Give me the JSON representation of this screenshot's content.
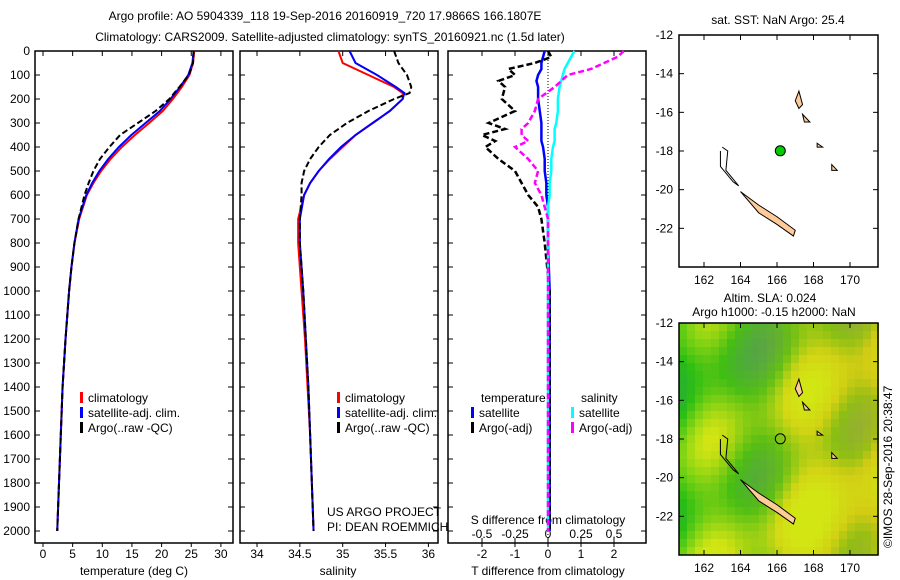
{
  "title_line1": "Argo profile: AO 5904339_118 19-Sep-2016 20160919_720 17.9866S 166.1807E",
  "title_line2": "Climatology: CARS2009. Satellite-adjusted climatology: synTS_20160921.nc (1.5d later)",
  "credit": "©IMOS 28-Sep-2016 20:38:47",
  "colors": {
    "climatology": "#ff0000",
    "satellite": "#0000ff",
    "argo": "#000000",
    "sal_satellite": "#00ffff",
    "sal_argo": "#ff00ff",
    "island": "#ffcc99",
    "argo_point": "#00cc00"
  },
  "chart_data": [
    {
      "type": "line",
      "title": "",
      "xlabel": "temperature (deg C)",
      "ylabel": "",
      "xlim": [
        -1.3,
        32
      ],
      "ylim": [
        2050,
        0
      ],
      "xticks": [
        "0",
        "5",
        "10",
        "15",
        "20",
        "25",
        "30"
      ],
      "yticks": [
        "0",
        "100",
        "200",
        "300",
        "400",
        "500",
        "600",
        "700",
        "800",
        "900",
        "1000",
        "1100",
        "1200",
        "1300",
        "1400",
        "1500",
        "1600",
        "1700",
        "1800",
        "1900",
        "2000"
      ],
      "legend": [
        "climatology",
        "satellite-adj. clim.",
        "Argo(..raw -QC)"
      ],
      "depth": [
        0,
        50,
        100,
        150,
        200,
        250,
        300,
        350,
        400,
        450,
        500,
        550,
        600,
        700,
        800,
        900,
        1000,
        1200,
        1400,
        1600,
        1800,
        2000
      ],
      "series": [
        {
          "name": "climatology",
          "values": [
            25.5,
            25.3,
            24.7,
            23.4,
            21.9,
            20.2,
            17.9,
            15.5,
            13.3,
            11.4,
            9.8,
            8.5,
            7.4,
            6.1,
            5.3,
            4.8,
            4.4,
            3.8,
            3.3,
            3.0,
            2.7,
            2.4
          ]
        },
        {
          "name": "satellite-adj. clim.",
          "values": [
            25.4,
            25.2,
            24.5,
            23.1,
            21.5,
            19.7,
            17.3,
            14.9,
            12.8,
            11.0,
            9.5,
            8.3,
            7.3,
            6.0,
            5.3,
            4.8,
            4.4,
            3.8,
            3.3,
            3.0,
            2.7,
            2.4
          ]
        },
        {
          "name": "Argo(..raw -QC)",
          "values": [
            25.4,
            25.3,
            24.6,
            23.0,
            21.3,
            19.0,
            16.0,
            13.0,
            11.2,
            9.6,
            8.5,
            7.7,
            7.0,
            6.0,
            5.3,
            4.8,
            4.4,
            3.8,
            3.3,
            3.0,
            2.7,
            2.4
          ]
        }
      ]
    },
    {
      "type": "line",
      "xlabel": "salinity",
      "xlim": [
        33.8,
        36.3
      ],
      "ylim": [
        2050,
        0
      ],
      "xticks": [
        "34",
        "34.5",
        "35",
        "35.5",
        "36"
      ],
      "legend": [
        "climatology",
        "satellite-adj. clim.",
        "Argo(..raw -QC)"
      ],
      "annotation": [
        "US ARGO PROJECT",
        "PI: DEAN ROEMMICH"
      ],
      "depth": [
        0,
        50,
        100,
        150,
        175,
        200,
        250,
        300,
        350,
        400,
        450,
        500,
        550,
        600,
        700,
        800,
        900,
        1000,
        1200,
        1400,
        1600,
        1800,
        2000
      ],
      "series": [
        {
          "name": "climatology",
          "values": [
            34.95,
            35.0,
            35.3,
            35.6,
            35.7,
            35.7,
            35.55,
            35.35,
            35.15,
            35.0,
            34.85,
            34.72,
            34.62,
            34.55,
            34.48,
            34.48,
            34.5,
            34.52,
            34.56,
            34.59,
            34.62,
            34.64,
            34.66
          ]
        },
        {
          "name": "satellite-adj. clim.",
          "values": [
            35.08,
            35.15,
            35.4,
            35.62,
            35.72,
            35.7,
            35.55,
            35.35,
            35.15,
            34.98,
            34.84,
            34.72,
            34.62,
            34.55,
            34.5,
            34.5,
            34.52,
            34.54,
            34.57,
            34.6,
            34.62,
            34.64,
            34.66
          ]
        },
        {
          "name": "Argo(..raw -QC)",
          "values": [
            35.6,
            35.65,
            35.75,
            35.8,
            35.78,
            35.6,
            35.3,
            35.05,
            34.85,
            34.72,
            34.62,
            34.55,
            34.52,
            34.52,
            34.5,
            34.5,
            34.52,
            34.54,
            34.57,
            34.6,
            34.62,
            34.64,
            34.66
          ]
        }
      ]
    },
    {
      "type": "line",
      "xlabel": "T difference from climatology",
      "xlabel2": "S difference from climatology",
      "xlim": [
        -3,
        3
      ],
      "ylim": [
        2050,
        0
      ],
      "xticks": [
        "-2",
        "-1",
        "0",
        "1",
        "2"
      ],
      "xticks2": [
        "-0.5",
        "-0.25",
        "0",
        "0.25",
        "0.5"
      ],
      "legend_titles": [
        "temperature",
        "salinity"
      ],
      "legend": [
        "satellite",
        "Argo(-adj)",
        "satellite",
        "Argo(-adj)"
      ],
      "depth": [
        0,
        25,
        50,
        75,
        100,
        125,
        150,
        200,
        250,
        300,
        325,
        350,
        375,
        400,
        450,
        500,
        550,
        600,
        650,
        700,
        800,
        1000,
        1500,
        2000
      ],
      "series": [
        {
          "name": "temperature satellite",
          "values": [
            -0.1,
            -0.15,
            -0.2,
            -0.2,
            -0.3,
            -0.35,
            -0.3,
            -0.3,
            -0.25,
            -0.2,
            -0.2,
            -0.2,
            -0.2,
            -0.15,
            -0.1,
            -0.1,
            -0.05,
            -0.05,
            0,
            0,
            0,
            0.05,
            0.05,
            0.05
          ]
        },
        {
          "name": "temperature Argo(-adj)",
          "values": [
            0,
            0.1,
            -0.4,
            -1.2,
            -1.0,
            -1.5,
            -1.3,
            -1.4,
            -1.0,
            -1.8,
            -1.3,
            -2.0,
            -1.6,
            -1.9,
            -1.5,
            -1.0,
            -0.8,
            -0.6,
            -0.3,
            -0.2,
            -0.1,
            0.05,
            0.05,
            0.05
          ]
        },
        {
          "name": "salinity satellite",
          "values": [
            0.8,
            0.7,
            0.6,
            0.5,
            0.45,
            0.4,
            0.35,
            0.3,
            0.3,
            0.25,
            0.2,
            0.2,
            0.2,
            0.15,
            0.1,
            0.1,
            0.05,
            0.05,
            0,
            0,
            0,
            0,
            0,
            0
          ]
        },
        {
          "name": "salinity Argo(-adj)",
          "values": [
            2.3,
            2.1,
            1.7,
            1.3,
            0.6,
            0.4,
            0.2,
            -0.3,
            -0.4,
            -0.6,
            -0.8,
            -0.8,
            -0.6,
            -1.0,
            -0.6,
            -0.3,
            -0.4,
            -0.2,
            -0.1,
            0,
            0,
            0,
            0,
            0
          ]
        }
      ]
    },
    {
      "type": "scatter",
      "title": "sat. SST: NaN Argo: 25.4",
      "xlim": [
        160.8,
        171.6
      ],
      "ylim": [
        -24,
        -12
      ],
      "xticks": [
        "162",
        "164",
        "166",
        "168",
        "170"
      ],
      "yticks": [
        "-12",
        "-14",
        "-16",
        "-18",
        "-20",
        "-22"
      ],
      "points": [
        {
          "lon": 166.18,
          "lat": -17.99
        }
      ]
    },
    {
      "type": "heatmap",
      "title_line1": "Altim. SLA: 0.024",
      "title_line2": "Argo h1000: -0.15 h2000: NaN",
      "xlim": [
        160.8,
        171.6
      ],
      "ylim": [
        -24,
        -12
      ],
      "xticks": [
        "162",
        "164",
        "166",
        "168",
        "170"
      ],
      "yticks": [
        "-12",
        "-14",
        "-16",
        "-18",
        "-20",
        "-22"
      ],
      "points": [
        {
          "lon": 166.18,
          "lat": -17.99
        }
      ]
    }
  ]
}
